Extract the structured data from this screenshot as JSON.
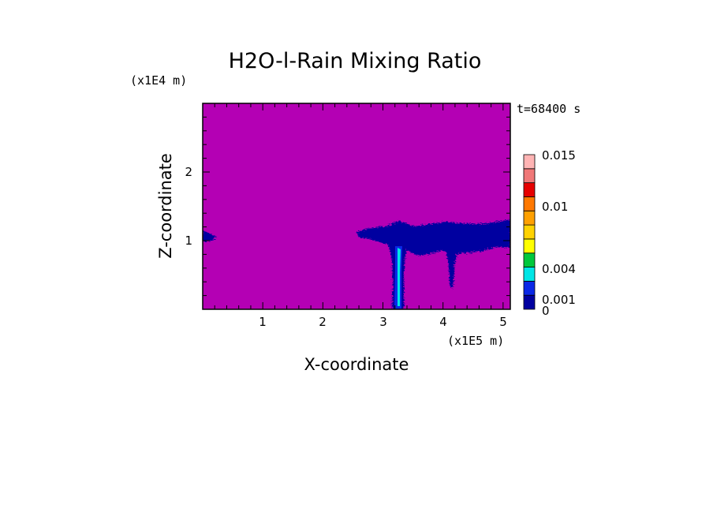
{
  "chart_data": {
    "type": "heatmap",
    "title": "H2O-l-Rain Mixing Ratio",
    "xlabel": "X-coordinate",
    "ylabel": "Z-coordinate",
    "x_scale_label": "(x1E5 m)",
    "y_scale_label": "(x1E4 m)",
    "time_label": "t=68400 s",
    "xlim": [
      0,
      5.12
    ],
    "ylim": [
      0,
      3.0
    ],
    "x_ticks": [
      "1",
      "2",
      "3",
      "4",
      "5"
    ],
    "y_ticks": [
      "1",
      "2"
    ],
    "background_value": 0,
    "colorbar": {
      "levels": [
        0,
        0.0005,
        0.001,
        0.0015,
        0.002,
        0.004,
        0.006,
        0.008,
        0.01,
        0.012,
        0.014,
        0.015
      ],
      "colors": [
        "#b400b4",
        "#0000a0",
        "#0a28e6",
        "#00e6e6",
        "#00c83c",
        "#ffff00",
        "#ffd200",
        "#ffa000",
        "#ff7800",
        "#e60000",
        "#f07878",
        "#ffb4b4"
      ],
      "tick_labels": [
        "0.015",
        "0.01",
        "0.004",
        "0.001",
        "0"
      ]
    }
  }
}
